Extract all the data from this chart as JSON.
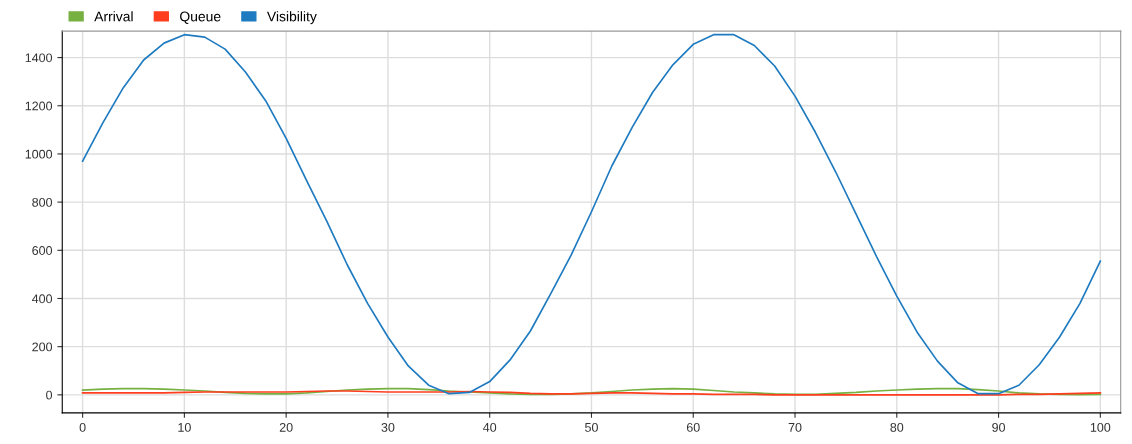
{
  "chart_data": {
    "type": "line",
    "x": [
      0,
      2,
      4,
      6,
      8,
      10,
      12,
      14,
      16,
      18,
      20,
      22,
      24,
      26,
      28,
      30,
      32,
      34,
      36,
      38,
      40,
      42,
      44,
      46,
      48,
      50,
      52,
      54,
      56,
      58,
      60,
      62,
      64,
      66,
      68,
      70,
      72,
      74,
      76,
      78,
      80,
      82,
      84,
      86,
      88,
      90,
      92,
      94,
      96,
      98,
      100
    ],
    "series": [
      {
        "name": "Arrival",
        "color": "#76b041",
        "values": [
          20,
          24,
          26,
          26,
          24,
          20,
          16,
          10,
          6,
          4,
          4,
          8,
          14,
          20,
          24,
          26,
          26,
          22,
          16,
          12,
          8,
          4,
          2,
          2,
          4,
          8,
          14,
          20,
          24,
          26,
          24,
          18,
          12,
          8,
          4,
          2,
          2,
          6,
          10,
          16,
          20,
          24,
          26,
          26,
          22,
          16,
          8,
          4,
          2,
          1,
          2
        ]
      },
      {
        "name": "Queue",
        "color": "#ff3d1f",
        "values": [
          8,
          8,
          8,
          8,
          8,
          10,
          12,
          12,
          12,
          12,
          12,
          14,
          16,
          16,
          14,
          12,
          12,
          12,
          12,
          14,
          12,
          10,
          6,
          4,
          4,
          6,
          8,
          8,
          6,
          4,
          4,
          2,
          2,
          2,
          0,
          0,
          0,
          0,
          0,
          0,
          0,
          0,
          0,
          0,
          0,
          0,
          2,
          2,
          4,
          6,
          8
        ]
      },
      {
        "name": "Visibility",
        "color": "#1f7bc0",
        "values": [
          970,
          1130,
          1275,
          1390,
          1460,
          1495,
          1485,
          1435,
          1340,
          1220,
          1065,
          890,
          720,
          540,
          380,
          240,
          120,
          40,
          5,
          10,
          55,
          145,
          265,
          420,
          580,
          760,
          950,
          1110,
          1255,
          1370,
          1455,
          1495,
          1495,
          1450,
          1365,
          1240,
          1090,
          925,
          750,
          575,
          410,
          260,
          140,
          50,
          5,
          5,
          40,
          125,
          240,
          380,
          555
        ]
      }
    ],
    "xlim": [
      -2,
      102
    ],
    "xticks": [
      0,
      10,
      20,
      30,
      40,
      50,
      60,
      70,
      80,
      90,
      100
    ],
    "ylim": [
      -75,
      1510
    ],
    "yticks": [
      0,
      200,
      400,
      600,
      800,
      1000,
      1200,
      1400
    ],
    "grid": true,
    "legend": "top left",
    "marker": "none",
    "line_style": "solid"
  }
}
